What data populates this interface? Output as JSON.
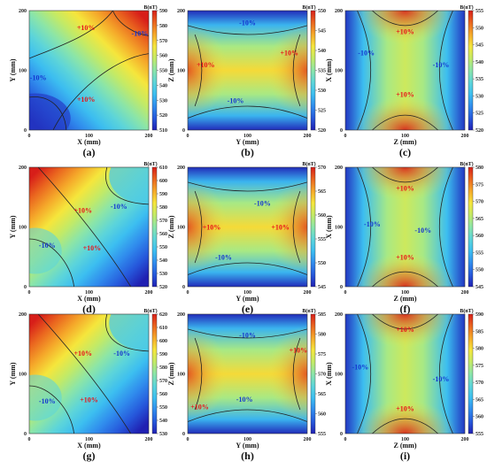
{
  "chart_data": [
    {
      "panel_label": "(a)",
      "type": "heatmap",
      "xlabel": "X (mm)",
      "ylabel": "Y (mm)",
      "colorbar_label": "B(nT)",
      "x_ticks": [
        "0",
        "100",
        "200"
      ],
      "y_ticks": [
        "0",
        "100",
        "200"
      ],
      "colorbar_ticks": [
        "510",
        "520",
        "530",
        "540",
        "550",
        "560",
        "570",
        "580",
        "590"
      ],
      "colorbar_range": [
        510,
        590
      ],
      "pattern": "diagonal",
      "contour_labels": [
        {
          "text": "+10%",
          "kind": "pos",
          "x": 95,
          "y": 172
        },
        {
          "text": "-10%",
          "kind": "neg",
          "x": 185,
          "y": 162
        },
        {
          "text": "-10%",
          "kind": "neg",
          "x": 15,
          "y": 88
        },
        {
          "text": "+10%",
          "kind": "pos",
          "x": 95,
          "y": 52
        }
      ]
    },
    {
      "panel_label": "(b)",
      "type": "heatmap",
      "xlabel": "Y (mm)",
      "ylabel": "Z (mm)",
      "colorbar_label": "B(nT)",
      "x_ticks": [
        "0",
        "100",
        "200"
      ],
      "y_ticks": [
        "0",
        "100",
        "200"
      ],
      "colorbar_ticks": [
        "520",
        "525",
        "530",
        "535",
        "540",
        "545",
        "550"
      ],
      "colorbar_range": [
        520,
        550
      ],
      "pattern": "saddle_lr",
      "contour_labels": [
        {
          "text": "-10%",
          "kind": "neg",
          "x": 100,
          "y": 180
        },
        {
          "text": "+10%",
          "kind": "pos",
          "x": 30,
          "y": 110
        },
        {
          "text": "+10%",
          "kind": "pos",
          "x": 170,
          "y": 130
        },
        {
          "text": "-10%",
          "kind": "neg",
          "x": 80,
          "y": 50
        }
      ]
    },
    {
      "panel_label": "(c)",
      "type": "heatmap",
      "xlabel": "Z (mm)",
      "ylabel": "X (mm)",
      "colorbar_label": "B(nT)",
      "x_ticks": [
        "0",
        "100",
        "200"
      ],
      "y_ticks": [
        "0",
        "100",
        "200"
      ],
      "colorbar_ticks": [
        "520",
        "525",
        "530",
        "535",
        "540",
        "545",
        "550",
        "555"
      ],
      "colorbar_range": [
        520,
        555
      ],
      "pattern": "saddle_tb",
      "contour_labels": [
        {
          "text": "+10%",
          "kind": "pos",
          "x": 100,
          "y": 165
        },
        {
          "text": "-10%",
          "kind": "neg",
          "x": 35,
          "y": 130
        },
        {
          "text": "-10%",
          "kind": "neg",
          "x": 160,
          "y": 110
        },
        {
          "text": "+10%",
          "kind": "pos",
          "x": 100,
          "y": 60
        }
      ]
    },
    {
      "panel_label": "(d)",
      "type": "heatmap",
      "xlabel": "X (mm)",
      "ylabel": "Y (mm)",
      "colorbar_label": "B(nT)",
      "x_ticks": [
        "0",
        "100",
        "200"
      ],
      "y_ticks": [
        "0",
        "100",
        "200"
      ],
      "colorbar_ticks": [
        "520",
        "530",
        "540",
        "550",
        "560",
        "570",
        "580",
        "590",
        "600",
        "610"
      ],
      "colorbar_range": [
        520,
        610
      ],
      "pattern": "diagonal",
      "contour_labels": [
        {
          "text": "+10%",
          "kind": "pos",
          "x": 90,
          "y": 128
        },
        {
          "text": "-10%",
          "kind": "neg",
          "x": 150,
          "y": 135
        },
        {
          "text": "-10%",
          "kind": "neg",
          "x": 30,
          "y": 70
        },
        {
          "text": "+10%",
          "kind": "pos",
          "x": 105,
          "y": 65
        }
      ]
    },
    {
      "panel_label": "(e)",
      "type": "heatmap",
      "xlabel": "Y (mm)",
      "ylabel": "Z (mm)",
      "colorbar_label": "B(nT)",
      "x_ticks": [
        "0",
        "100",
        "200"
      ],
      "y_ticks": [
        "0",
        "100",
        "200"
      ],
      "colorbar_ticks": [
        "545",
        "550",
        "555",
        "560",
        "565",
        "570"
      ],
      "colorbar_range": [
        545,
        570
      ],
      "pattern": "saddle_lr",
      "contour_labels": [
        {
          "text": "-10%",
          "kind": "neg",
          "x": 125,
          "y": 140
        },
        {
          "text": "+10%",
          "kind": "pos",
          "x": 40,
          "y": 100
        },
        {
          "text": "+10%",
          "kind": "pos",
          "x": 155,
          "y": 100
        },
        {
          "text": "-10%",
          "kind": "neg",
          "x": 60,
          "y": 50
        }
      ]
    },
    {
      "panel_label": "(f)",
      "type": "heatmap",
      "xlabel": "Z (mm)",
      "ylabel": "X (mm)",
      "colorbar_label": "B(nT)",
      "x_ticks": [
        "0",
        "100",
        "200"
      ],
      "y_ticks": [
        "0",
        "100",
        "200"
      ],
      "colorbar_ticks": [
        "545",
        "550",
        "555",
        "560",
        "565",
        "570",
        "575",
        "580"
      ],
      "colorbar_range": [
        545,
        580
      ],
      "pattern": "saddle_tb",
      "contour_labels": [
        {
          "text": "+10%",
          "kind": "pos",
          "x": 100,
          "y": 165
        },
        {
          "text": "-10%",
          "kind": "neg",
          "x": 45,
          "y": 105
        },
        {
          "text": "-10%",
          "kind": "neg",
          "x": 130,
          "y": 95
        },
        {
          "text": "+10%",
          "kind": "pos",
          "x": 100,
          "y": 50
        }
      ]
    },
    {
      "panel_label": "(g)",
      "type": "heatmap",
      "xlabel": "X (mm)",
      "ylabel": "Y (mm)",
      "colorbar_label": "B(nT)",
      "x_ticks": [
        "0",
        "100",
        "200"
      ],
      "y_ticks": [
        "0",
        "100",
        "200"
      ],
      "colorbar_ticks": [
        "530",
        "540",
        "550",
        "560",
        "570",
        "580",
        "590",
        "600",
        "610",
        "620"
      ],
      "colorbar_range": [
        530,
        620
      ],
      "pattern": "diagonal",
      "contour_labels": [
        {
          "text": "+10%",
          "kind": "pos",
          "x": 90,
          "y": 135
        },
        {
          "text": "-10%",
          "kind": "neg",
          "x": 155,
          "y": 135
        },
        {
          "text": "-10%",
          "kind": "neg",
          "x": 30,
          "y": 55
        },
        {
          "text": "+10%",
          "kind": "pos",
          "x": 100,
          "y": 57
        }
      ]
    },
    {
      "panel_label": "(h)",
      "type": "heatmap",
      "xlabel": "Y (mm)",
      "ylabel": "Z (mm)",
      "colorbar_label": "B(nT)",
      "x_ticks": [
        "0",
        "100",
        "200"
      ],
      "y_ticks": [
        "0",
        "100",
        "200"
      ],
      "colorbar_ticks": [
        "555",
        "560",
        "565",
        "570",
        "575",
        "580",
        "585"
      ],
      "colorbar_range": [
        555,
        585
      ],
      "pattern": "saddle_lr",
      "contour_labels": [
        {
          "text": "-10%",
          "kind": "neg",
          "x": 100,
          "y": 165
        },
        {
          "text": "+10%",
          "kind": "pos",
          "x": 185,
          "y": 140
        },
        {
          "text": "+10%",
          "kind": "pos",
          "x": 20,
          "y": 45
        },
        {
          "text": "-10%",
          "kind": "neg",
          "x": 95,
          "y": 58
        }
      ]
    },
    {
      "panel_label": "(i)",
      "type": "heatmap",
      "xlabel": "Z (mm)",
      "ylabel": "X (mm)",
      "colorbar_label": "B(nT)",
      "x_ticks": [
        "0",
        "100",
        "200"
      ],
      "y_ticks": [
        "0",
        "100",
        "200"
      ],
      "colorbar_ticks": [
        "555",
        "560",
        "565",
        "570",
        "575",
        "580",
        "585",
        "590"
      ],
      "colorbar_range": [
        555,
        590
      ],
      "pattern": "saddle_tb",
      "contour_labels": [
        {
          "text": "+10%",
          "kind": "pos",
          "x": 100,
          "y": 175
        },
        {
          "text": "-10%",
          "kind": "neg",
          "x": 25,
          "y": 112
        },
        {
          "text": "-10%",
          "kind": "neg",
          "x": 160,
          "y": 92
        },
        {
          "text": "+10%",
          "kind": "pos",
          "x": 100,
          "y": 42
        }
      ]
    }
  ]
}
